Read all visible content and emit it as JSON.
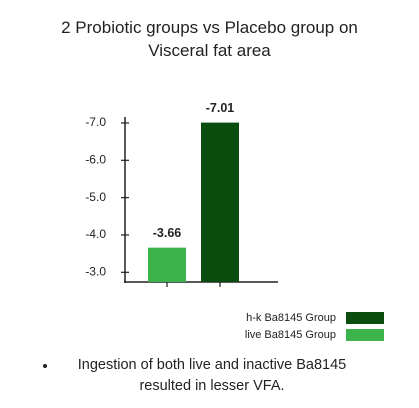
{
  "chart_data": {
    "type": "bar",
    "title": "2 Probiotic groups vs Placebo group on Visceral fat area",
    "categories": [
      null
    ],
    "series": [
      {
        "name": "live Ba8145 Group",
        "color": "#3cb44b",
        "values": [
          -3.66
        ]
      },
      {
        "name": "h-k Ba8145 Group",
        "color": "#0b4d0f",
        "values": [
          -7.01
        ]
      }
    ],
    "ylim": [
      -2.74,
      -7.16
    ],
    "yticks": [
      {
        "value": -7,
        "label": "-7.0"
      },
      {
        "value": -6,
        "label": "-6.0"
      },
      {
        "value": -5,
        "label": "-5.0"
      },
      {
        "value": -4,
        "label": "-4.0"
      },
      {
        "value": -3,
        "label": "-3.0"
      }
    ],
    "note": "Ingestion of both live and inactive Ba8145 resulted in lesser VFA."
  }
}
